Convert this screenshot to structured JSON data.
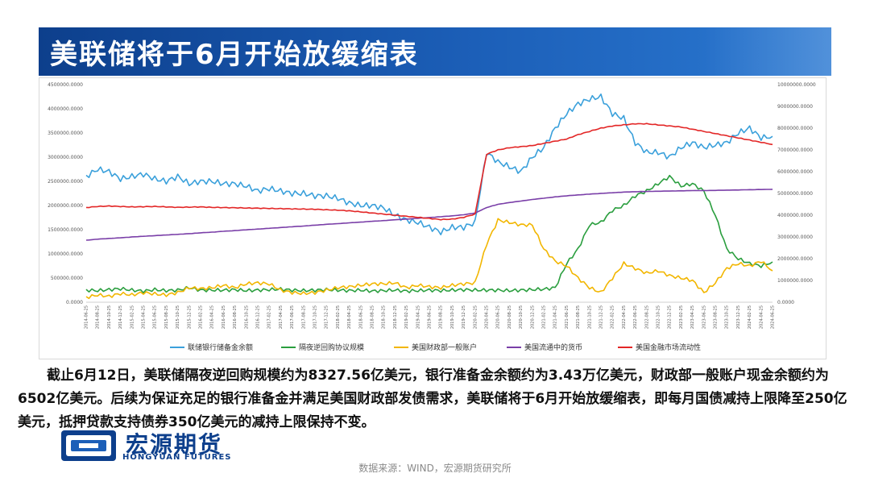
{
  "header": {
    "title": "美联储将于6月开始放缓缩表"
  },
  "chart_data": {
    "type": "line",
    "x": [
      "2014-06-25",
      "2014-08-25",
      "2014-10-25",
      "2014-12-25",
      "2015-02-25",
      "2015-04-25",
      "2015-06-25",
      "2015-08-25",
      "2015-10-25",
      "2015-12-25",
      "2016-02-25",
      "2016-04-25",
      "2016-06-25",
      "2016-08-25",
      "2016-10-25",
      "2016-12-25",
      "2017-02-25",
      "2017-04-25",
      "2017-06-25",
      "2017-08-25",
      "2017-10-25",
      "2017-12-25",
      "2018-02-25",
      "2018-04-25",
      "2018-06-25",
      "2018-08-25",
      "2018-10-25",
      "2018-12-25",
      "2019-02-25",
      "2019-04-25",
      "2019-06-25",
      "2019-08-25",
      "2019-10-25",
      "2019-12-25",
      "2020-02-25",
      "2020-04-25",
      "2020-06-25",
      "2020-08-25",
      "2020-10-25",
      "2020-12-25",
      "2021-02-25",
      "2021-04-25",
      "2021-06-25",
      "2021-08-25",
      "2021-10-25",
      "2021-12-25",
      "2022-02-25",
      "2022-04-25",
      "2022-06-25",
      "2022-08-25",
      "2022-10-25",
      "2022-12-25",
      "2023-02-25",
      "2023-04-25",
      "2023-06-25",
      "2023-08-25",
      "2023-10-25",
      "2023-12-25",
      "2024-02-25",
      "2024-04-25",
      "2024-06-25"
    ],
    "left_axis": {
      "ylim": [
        0,
        4500000
      ],
      "ticks": [
        "0.0000",
        "500000.0000",
        "1000000.0000",
        "1500000.0000",
        "2000000.0000",
        "2500000.0000",
        "3000000.0000",
        "3500000.0000",
        "4000000.0000",
        "4500000.0000"
      ]
    },
    "right_axis": {
      "ylim": [
        0,
        10000000
      ],
      "ticks": [
        "0.0000",
        "1000000.0000",
        "2000000.0000",
        "3000000.0000",
        "4000000.0000",
        "5000000.0000",
        "6000000.0000",
        "7000000.0000",
        "8000000.0000",
        "9000000.0000",
        "10000000.0000"
      ]
    },
    "series": [
      {
        "name": "联储银行储备金余额",
        "axis": "left",
        "color": "#3aa0db",
        "values": [
          2600000,
          2750000,
          2700000,
          2550000,
          2600000,
          2650000,
          2550000,
          2500000,
          2600000,
          2450000,
          2500000,
          2500000,
          2450000,
          2450000,
          2400000,
          2300000,
          2350000,
          2300000,
          2250000,
          2250000,
          2200000,
          2200000,
          2150000,
          2050000,
          2000000,
          2000000,
          1950000,
          1800000,
          1700000,
          1650000,
          1550000,
          1450000,
          1550000,
          1550000,
          1650000,
          3100000,
          2900000,
          2800000,
          2700000,
          3000000,
          3200000,
          3600000,
          3900000,
          4100000,
          4200000,
          4250000,
          3900000,
          3800000,
          3300000,
          3100000,
          3100000,
          3000000,
          3200000,
          3300000,
          3200000,
          3250000,
          3300000,
          3500000,
          3600000,
          3400000,
          3430000
        ]
      },
      {
        "name": "隔夜逆回购协议规模",
        "axis": "left",
        "color": "#2a9e3e",
        "values": [
          250000,
          240000,
          260000,
          280000,
          250000,
          230000,
          260000,
          240000,
          250000,
          300000,
          250000,
          250000,
          250000,
          260000,
          240000,
          250000,
          260000,
          270000,
          250000,
          240000,
          250000,
          260000,
          250000,
          240000,
          250000,
          230000,
          240000,
          250000,
          230000,
          240000,
          250000,
          240000,
          250000,
          260000,
          250000,
          250000,
          250000,
          240000,
          250000,
          260000,
          270000,
          300000,
          800000,
          1100000,
          1600000,
          1650000,
          1900000,
          2000000,
          2200000,
          2300000,
          2450000,
          2600000,
          2400000,
          2450000,
          2300000,
          1800000,
          1100000,
          900000,
          800000,
          750000,
          832756
        ]
      },
      {
        "name": "美国财政部一般账户",
        "axis": "left",
        "color": "#f2b600",
        "values": [
          100000,
          150000,
          120000,
          180000,
          150000,
          200000,
          170000,
          150000,
          200000,
          300000,
          280000,
          300000,
          350000,
          300000,
          380000,
          400000,
          380000,
          250000,
          200000,
          180000,
          200000,
          250000,
          300000,
          320000,
          350000,
          380000,
          380000,
          400000,
          300000,
          350000,
          320000,
          300000,
          350000,
          380000,
          400000,
          1200000,
          1700000,
          1650000,
          1600000,
          1600000,
          1100000,
          850000,
          750000,
          500000,
          300000,
          200000,
          500000,
          800000,
          700000,
          600000,
          650000,
          550000,
          500000,
          450000,
          200000,
          400000,
          700000,
          800000,
          750000,
          850000,
          650200
        ]
      },
      {
        "name": "美国流通中的货币",
        "axis": "right",
        "color": "#7a3fa8",
        "values": [
          2850000,
          2900000,
          2930000,
          2960000,
          3000000,
          3030000,
          3060000,
          3090000,
          3120000,
          3150000,
          3190000,
          3220000,
          3260000,
          3290000,
          3330000,
          3360000,
          3400000,
          3430000,
          3470000,
          3500000,
          3540000,
          3580000,
          3610000,
          3650000,
          3680000,
          3720000,
          3750000,
          3790000,
          3820000,
          3860000,
          3890000,
          3930000,
          3970000,
          4020000,
          4100000,
          4350000,
          4500000,
          4580000,
          4650000,
          4720000,
          4780000,
          4840000,
          4890000,
          4930000,
          4970000,
          5000000,
          5030000,
          5060000,
          5080000,
          5090000,
          5100000,
          5110000,
          5120000,
          5130000,
          5130000,
          5140000,
          5150000,
          5160000,
          5170000,
          5180000,
          5190000
        ]
      },
      {
        "name": "美国金融市场流动性",
        "axis": "right",
        "color": "#e32626",
        "values": [
          4350000,
          4400000,
          4420000,
          4400000,
          4380000,
          4390000,
          4400000,
          4380000,
          4360000,
          4370000,
          4380000,
          4360000,
          4350000,
          4340000,
          4330000,
          4320000,
          4310000,
          4300000,
          4290000,
          4280000,
          4270000,
          4250000,
          4230000,
          4200000,
          4150000,
          4100000,
          4050000,
          4000000,
          3950000,
          3900000,
          3850000,
          3800000,
          3820000,
          3900000,
          4050000,
          6800000,
          7000000,
          7100000,
          7150000,
          7200000,
          7300000,
          7400000,
          7500000,
          7700000,
          7850000,
          8000000,
          8100000,
          8150000,
          8200000,
          8200000,
          8150000,
          8100000,
          8050000,
          7950000,
          7850000,
          7750000,
          7650000,
          7550000,
          7450000,
          7350000,
          7250000
        ]
      }
    ]
  },
  "body": {
    "paragraph": "截止6月12日，美联储隔夜逆回购规模约为8327.56亿美元，银行准备金余额约为3.43万亿美元，财政部一般账户现金余额约为6502亿美元。后续为保证充足的银行准备金并满足美国财政部发债需求，美联储将于6月开始放缓缩表，即每月国债减持上限降至250亿美元，抵押贷款支持债券350亿美元的减持上限保持不变。"
  },
  "logo": {
    "name": "宏源期货",
    "english": "HONGYUAN FUTURES"
  },
  "footer": {
    "source": "数据来源：WIND，宏源期货研究所"
  },
  "colors": {
    "brand": "#0d3f8c",
    "header_gradient_end": "#2b79d2"
  }
}
